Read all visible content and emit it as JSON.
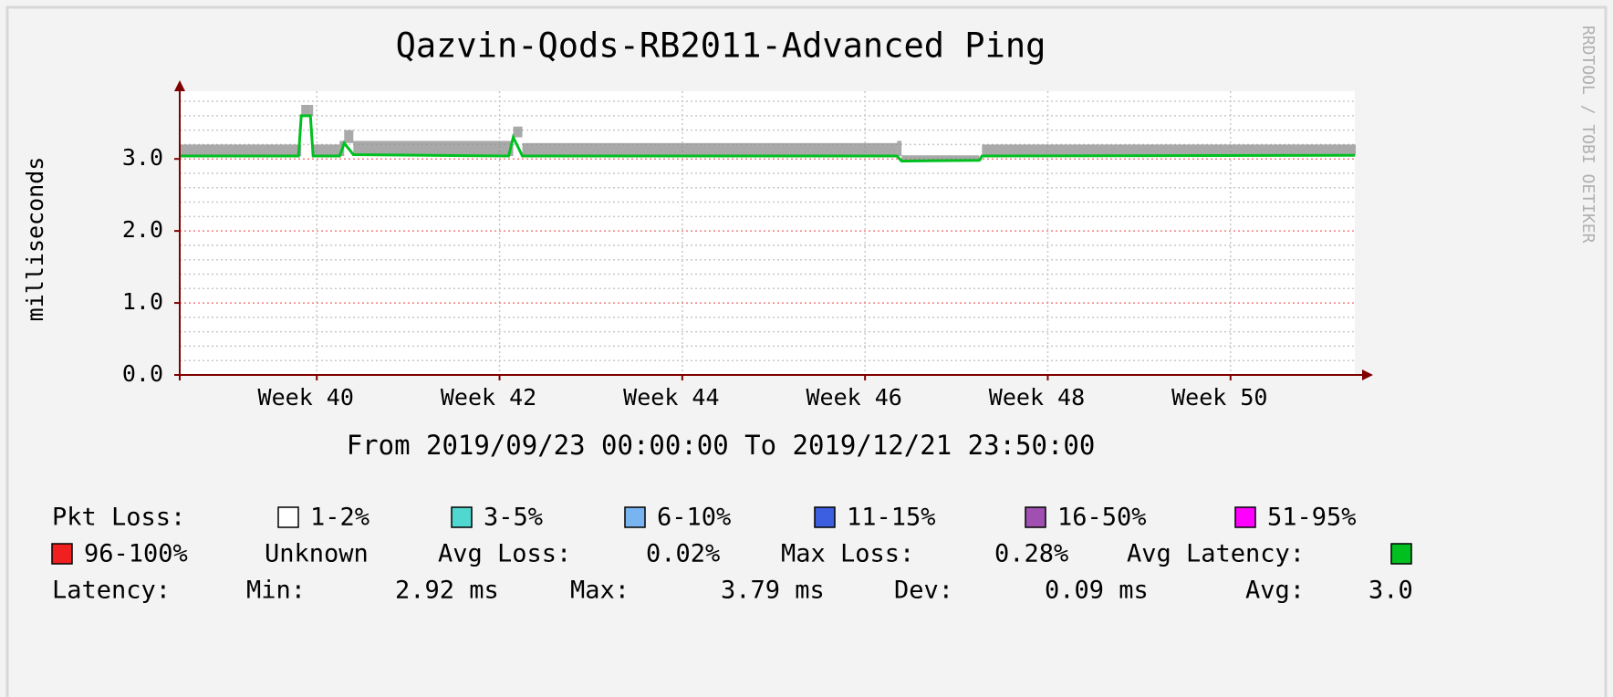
{
  "chart_data": {
    "type": "smokeline",
    "title": "Qazvin-Qods-RB2011-Advanced Ping",
    "y_label": "milliseconds",
    "x_label": "From 2019/09/23 00:00:00 To 2019/12/21 23:50:00",
    "side_text": "RRDTOOL / TOBI OETIKER",
    "xlim": [
      39,
      51.86
    ],
    "xticks": [
      {
        "value": 40.5,
        "label": "Week 40"
      },
      {
        "value": 42.5,
        "label": "Week 42"
      },
      {
        "value": 44.5,
        "label": "Week 44"
      },
      {
        "value": 46.5,
        "label": "Week 46"
      },
      {
        "value": 48.5,
        "label": "Week 48"
      },
      {
        "value": 50.5,
        "label": "Week 50"
      }
    ],
    "ylim": [
      0,
      3.94
    ],
    "yticks": [
      {
        "value": 0,
        "label": "0.0"
      },
      {
        "value": 1,
        "label": "1.0"
      },
      {
        "value": 2,
        "label": "2.0"
      },
      {
        "value": 3,
        "label": "3.0"
      }
    ],
    "grid": true,
    "x": [
      39.0,
      40.3,
      40.33,
      40.43,
      40.46,
      40.75,
      40.8,
      40.9,
      42.6,
      42.65,
      42.75,
      46.85,
      46.9,
      47.75,
      47.78,
      51.86
    ],
    "series": [
      {
        "name": "Avg Latency:",
        "color": "#00c020",
        "values": [
          3.04,
          3.04,
          3.6,
          3.6,
          3.04,
          3.04,
          3.22,
          3.06,
          3.04,
          3.3,
          3.04,
          3.04,
          2.97,
          2.98,
          3.04,
          3.05
        ],
        "smoke_top": [
          3.2,
          3.2,
          3.75,
          3.75,
          3.2,
          3.25,
          3.4,
          3.25,
          3.25,
          3.45,
          3.22,
          3.25,
          3.05,
          3.02,
          3.2,
          3.2
        ],
        "smoke_color": "#8c8c8c"
      }
    ],
    "legend": {
      "loss_title": "Pkt Loss:",
      "loss_items": [
        {
          "label": "1-2%",
          "color": "#ffffff"
        },
        {
          "label": "3-5%",
          "color": "#50d8d0"
        },
        {
          "label": "6-10%",
          "color": "#78b4f0"
        },
        {
          "label": "11-15%",
          "color": "#3c5ee0"
        },
        {
          "label": "16-50%",
          "color": "#a050b0"
        },
        {
          "label": "51-95%",
          "color": "#ff00ff"
        },
        {
          "label": "96-100%",
          "color": "#f02020"
        }
      ],
      "unknown": "Unknown",
      "avg_loss_label": "Avg Loss:",
      "avg_loss": "0.02%",
      "max_loss_label": "Max Loss:",
      "max_loss": "0.28%",
      "latency_title": "Latency:",
      "min_label": "Min:",
      "min": "2.92 ms",
      "max_label": "Max:",
      "max": "3.79 ms",
      "dev_label": "Dev:",
      "dev": "0.09 ms",
      "avg_label": "Avg:",
      "avg": "3.0"
    }
  }
}
